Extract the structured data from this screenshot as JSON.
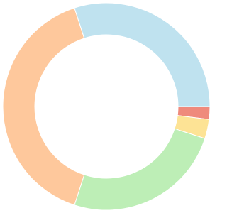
{
  "chart_data": {
    "type": "donut",
    "values": [
      2,
      3,
      25,
      40,
      30
    ],
    "colors": [
      "#ef8a7c",
      "#fde395",
      "#bdeeb6",
      "#fec89c",
      "#bfe2ef"
    ]
  }
}
